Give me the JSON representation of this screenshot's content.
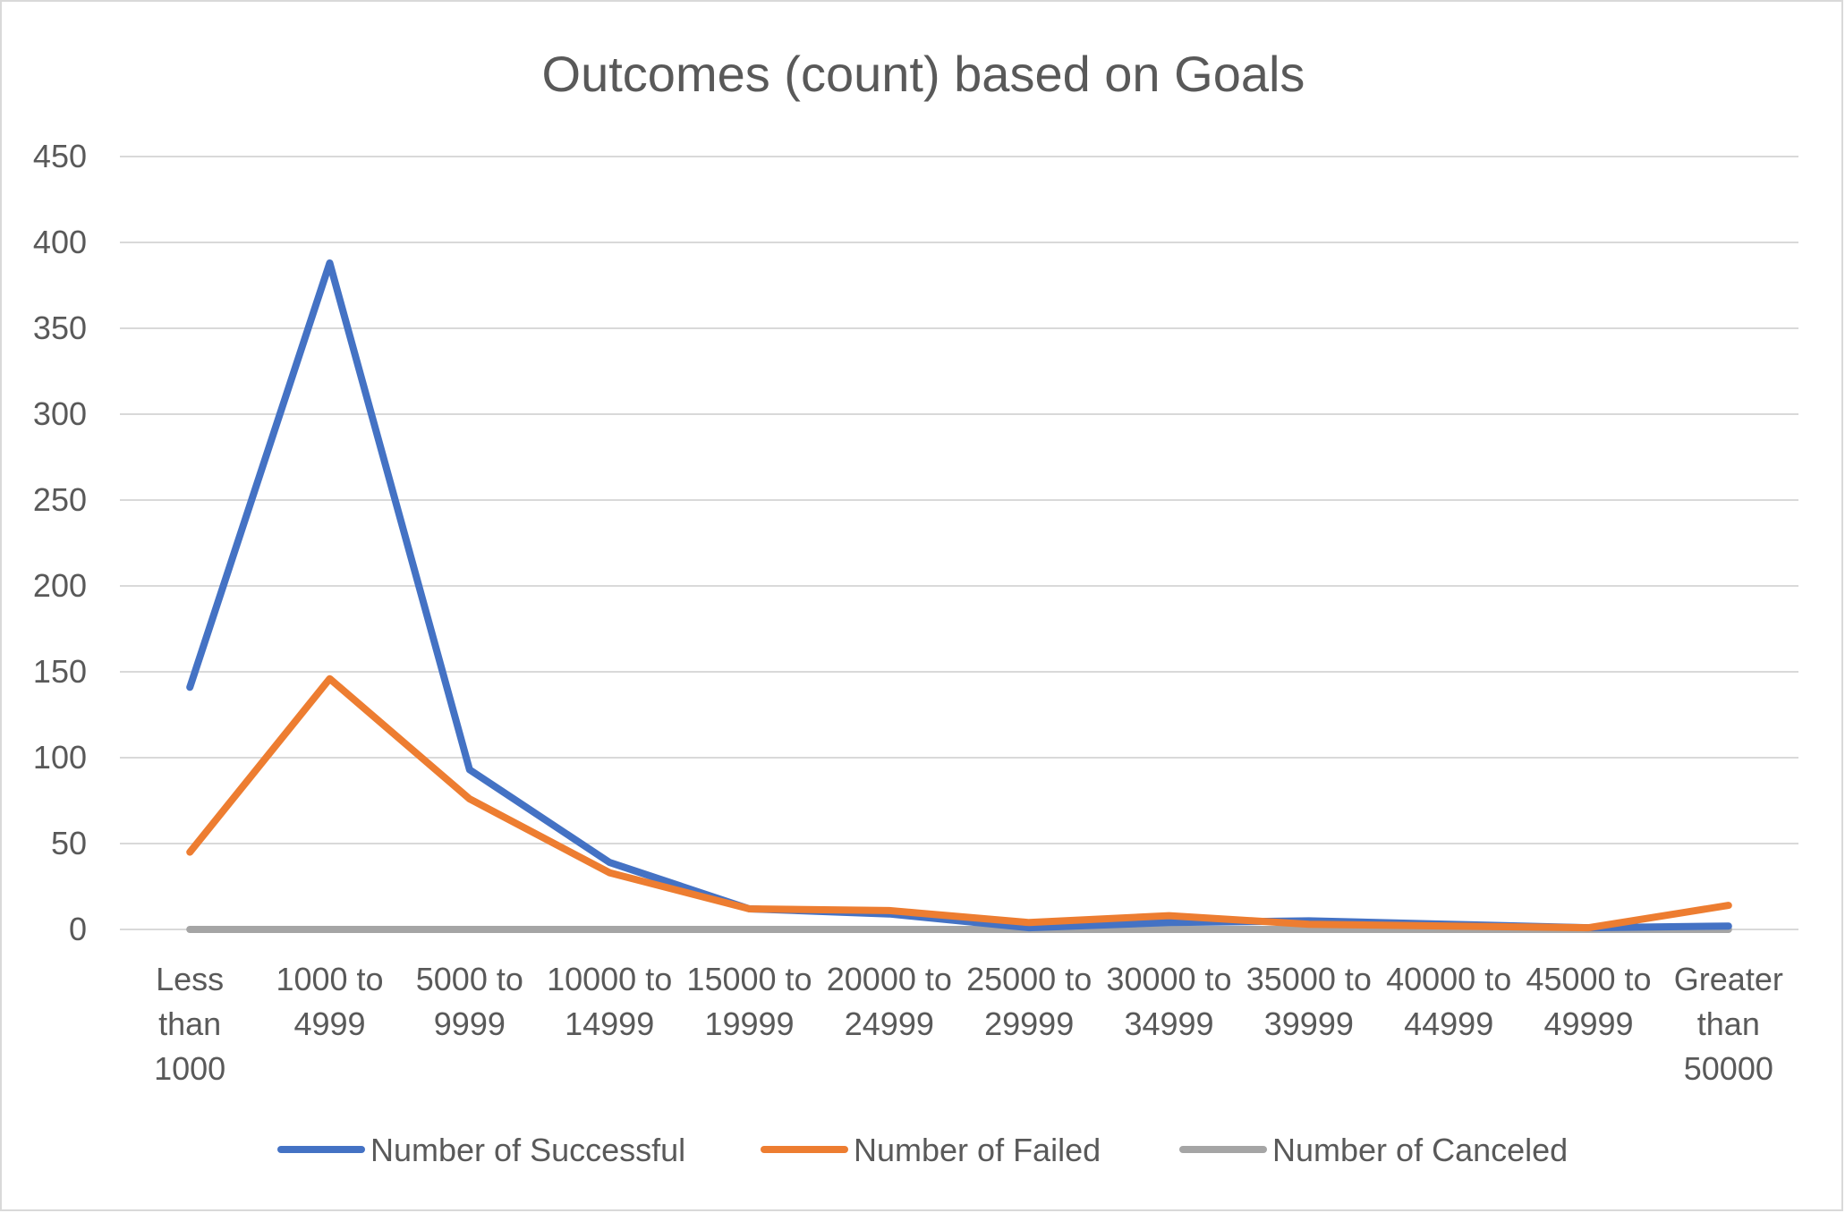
{
  "chart_data": {
    "type": "line",
    "title": "Outcomes (count) based on Goals",
    "xlabel": "",
    "ylabel": "",
    "ylim": [
      0,
      450
    ],
    "yticks": [
      0,
      50,
      100,
      150,
      200,
      250,
      300,
      350,
      400,
      450
    ],
    "grid": true,
    "legend_position": "bottom",
    "categories": [
      [
        "Less",
        "than",
        "1000"
      ],
      [
        "1000 to",
        "4999"
      ],
      [
        "5000 to",
        "9999"
      ],
      [
        "10000 to",
        "14999"
      ],
      [
        "15000 to",
        "19999"
      ],
      [
        "20000 to",
        "24999"
      ],
      [
        "25000 to",
        "29999"
      ],
      [
        "30000 to",
        "34999"
      ],
      [
        "35000 to",
        "39999"
      ],
      [
        "40000 to",
        "44999"
      ],
      [
        "45000 to",
        "49999"
      ],
      [
        "Greater",
        "than",
        "50000"
      ]
    ],
    "series": [
      {
        "name": "Number of Successful",
        "color": "#4472c4",
        "values": [
          141,
          388,
          93,
          39,
          12,
          9,
          1,
          4,
          5,
          3,
          1,
          2
        ]
      },
      {
        "name": "Number of Failed",
        "color": "#ed7d31",
        "values": [
          45,
          146,
          76,
          33,
          12,
          11,
          4,
          8,
          3,
          2,
          1,
          14
        ]
      },
      {
        "name": "Number of Canceled",
        "color": "#a5a5a5",
        "values": [
          0,
          0,
          0,
          0,
          0,
          0,
          0,
          0,
          0,
          0,
          0,
          0
        ]
      }
    ]
  }
}
